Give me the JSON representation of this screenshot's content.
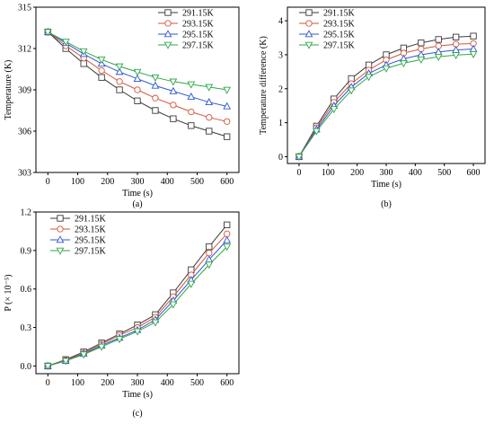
{
  "colors": {
    "291.15K": "#3a3a3a",
    "293.15K": "#d2553a",
    "295.15K": "#2f55d4",
    "297.15K": "#2fa64a"
  },
  "markers": {
    "291.15K": "square",
    "293.15K": "circle",
    "295.15K": "triangle-up",
    "297.15K": "triangle-down"
  },
  "chart_data": [
    {
      "id": "a",
      "type": "line",
      "caption": "(a)",
      "xlabel": "Time (s)",
      "ylabel": "Temperature (K)",
      "xlim": [
        -40,
        640
      ],
      "ylim": [
        303,
        315
      ],
      "xticks": [
        0,
        100,
        200,
        300,
        400,
        500,
        600
      ],
      "yticks": [
        303,
        306,
        309,
        312,
        315
      ],
      "legend": "top-right",
      "x": [
        0,
        60,
        120,
        180,
        240,
        300,
        360,
        420,
        480,
        540,
        600
      ],
      "series": [
        {
          "name": "291.15K",
          "values": [
            313.2,
            312.0,
            310.9,
            309.9,
            309.0,
            308.2,
            307.5,
            306.9,
            306.4,
            306.0,
            305.6
          ]
        },
        {
          "name": "293.15K",
          "values": [
            313.2,
            312.2,
            311.3,
            310.4,
            309.6,
            309.0,
            308.4,
            307.9,
            307.4,
            307.0,
            306.7
          ]
        },
        {
          "name": "295.15K",
          "values": [
            313.2,
            312.4,
            311.6,
            310.9,
            310.3,
            309.8,
            309.3,
            308.9,
            308.5,
            308.1,
            307.8
          ]
        },
        {
          "name": "297.15K",
          "values": [
            313.2,
            312.5,
            311.8,
            311.2,
            310.7,
            310.3,
            309.9,
            309.6,
            309.4,
            309.2,
            309.0
          ]
        }
      ]
    },
    {
      "id": "b",
      "type": "line",
      "caption": "(b)",
      "xlabel": "Time (s)",
      "ylabel": "Temperature difference (K)",
      "xlim": [
        -40,
        640
      ],
      "ylim": [
        -0.2,
        4.4
      ],
      "xticks": [
        0,
        100,
        200,
        300,
        400,
        500,
        600
      ],
      "yticks": [
        0,
        1,
        2,
        3,
        4
      ],
      "legend": "top-right",
      "x": [
        0,
        60,
        120,
        180,
        240,
        300,
        360,
        420,
        480,
        540,
        600
      ],
      "series": [
        {
          "name": "291.15K",
          "values": [
            0.0,
            0.9,
            1.7,
            2.3,
            2.7,
            3.0,
            3.2,
            3.35,
            3.45,
            3.52,
            3.55
          ]
        },
        {
          "name": "293.15K",
          "values": [
            0.0,
            0.85,
            1.6,
            2.15,
            2.55,
            2.85,
            3.05,
            3.17,
            3.26,
            3.31,
            3.33
          ]
        },
        {
          "name": "295.15K",
          "values": [
            0.0,
            0.8,
            1.5,
            2.05,
            2.45,
            2.7,
            2.88,
            3.0,
            3.08,
            3.14,
            3.17
          ]
        },
        {
          "name": "297.15K",
          "values": [
            0.0,
            0.75,
            1.4,
            1.95,
            2.35,
            2.6,
            2.75,
            2.86,
            2.94,
            2.99,
            3.02
          ]
        }
      ]
    },
    {
      "id": "c",
      "type": "line",
      "caption": "(c)",
      "xlabel": "Time (s)",
      "ylabel": "P (× 10⁻⁵)",
      "xlim": [
        -40,
        640
      ],
      "ylim": [
        -0.06,
        1.2
      ],
      "xticks": [
        0,
        100,
        200,
        300,
        400,
        500,
        600
      ],
      "yticks": [
        0.0,
        0.3,
        0.6,
        0.9,
        1.2
      ],
      "yticklabels": [
        "0.0",
        "0.3",
        "0.6",
        "0.9",
        "1.2"
      ],
      "legend": "top-left",
      "x": [
        0,
        60,
        120,
        180,
        240,
        300,
        360,
        420,
        480,
        540,
        600
      ],
      "series": [
        {
          "name": "291.15K",
          "values": [
            0.0,
            0.05,
            0.11,
            0.18,
            0.25,
            0.32,
            0.4,
            0.57,
            0.75,
            0.93,
            1.1
          ]
        },
        {
          "name": "293.15K",
          "values": [
            0.0,
            0.045,
            0.1,
            0.17,
            0.24,
            0.3,
            0.38,
            0.54,
            0.71,
            0.88,
            1.03
          ]
        },
        {
          "name": "295.15K",
          "values": [
            0.0,
            0.04,
            0.095,
            0.16,
            0.22,
            0.28,
            0.36,
            0.51,
            0.67,
            0.83,
            0.98
          ]
        },
        {
          "name": "297.15K",
          "values": [
            0.0,
            0.04,
            0.09,
            0.15,
            0.21,
            0.27,
            0.34,
            0.48,
            0.64,
            0.79,
            0.93
          ]
        }
      ]
    }
  ]
}
